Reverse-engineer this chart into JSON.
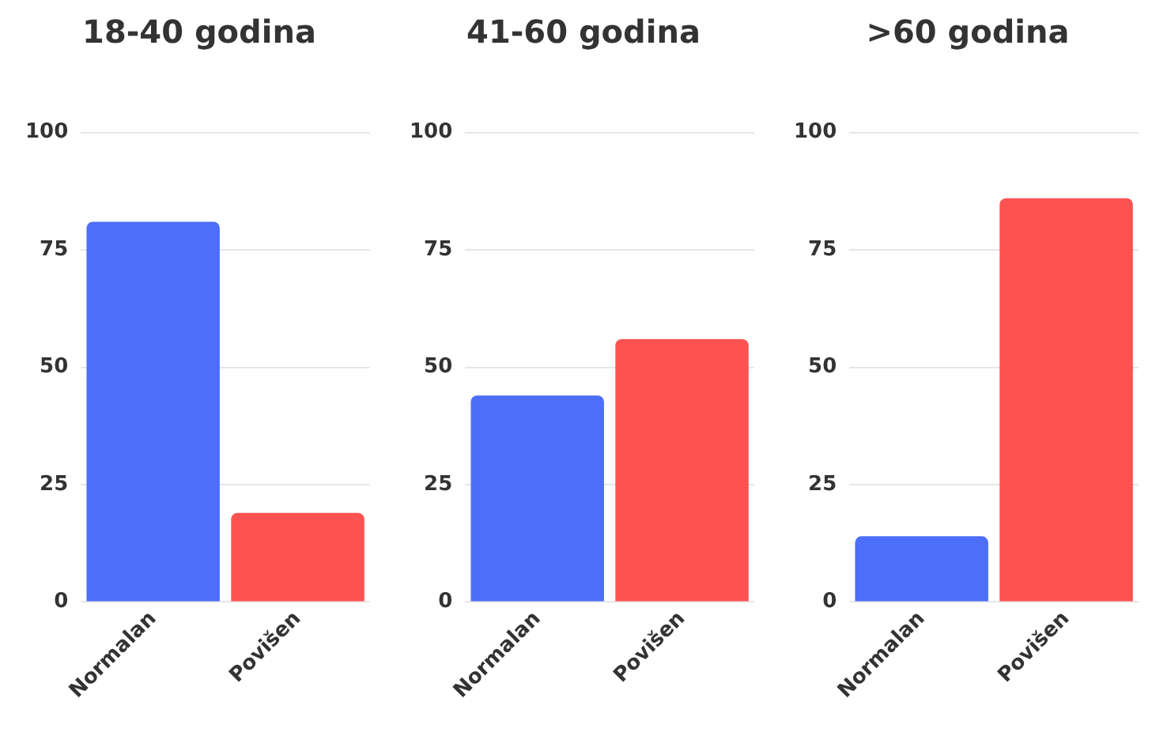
{
  "chart_data": [
    {
      "type": "bar",
      "title": "18-40 godina",
      "categories": [
        "Normalan",
        "Povišen"
      ],
      "values": [
        81,
        19
      ],
      "colors": [
        "#4d6ef9",
        "#fd5252"
      ],
      "ylim": [
        0,
        100
      ],
      "yticks": [
        0,
        25,
        50,
        75,
        100
      ],
      "grid": "y"
    },
    {
      "type": "bar",
      "title": "41-60 godina",
      "categories": [
        "Normalan",
        "Povišen"
      ],
      "values": [
        44,
        56
      ],
      "colors": [
        "#4d6ef9",
        "#fd5252"
      ],
      "ylim": [
        0,
        100
      ],
      "yticks": [
        0,
        25,
        50,
        75,
        100
      ],
      "grid": "y"
    },
    {
      "type": "bar",
      "title": ">60 godina",
      "categories": [
        "Normalan",
        "Povišen"
      ],
      "values": [
        14,
        86
      ],
      "colors": [
        "#4d6ef9",
        "#fd5252"
      ],
      "ylim": [
        0,
        100
      ],
      "yticks": [
        0,
        25,
        50,
        75,
        100
      ],
      "grid": "y"
    }
  ]
}
